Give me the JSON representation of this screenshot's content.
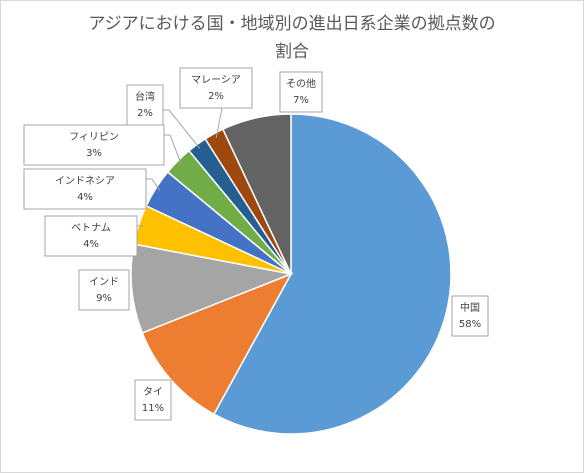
{
  "chart_data": {
    "type": "pie",
    "title_line1": "アジアにおける国・地域別の進出日系企業の拠点数の",
    "title_line2": "割合",
    "slices": [
      {
        "label": "中国",
        "value": 58,
        "pct": "58%",
        "color": "#5b9bd5"
      },
      {
        "label": "タイ",
        "value": 11,
        "pct": "11%",
        "color": "#ed7d31"
      },
      {
        "label": "インド",
        "value": 9,
        "pct": "9%",
        "color": "#a5a5a5"
      },
      {
        "label": "ベトナム",
        "value": 4,
        "pct": "4%",
        "color": "#ffc000"
      },
      {
        "label": "インドネシア",
        "value": 4,
        "pct": "4%",
        "color": "#4472c4"
      },
      {
        "label": "フィリピン",
        "value": 3,
        "pct": "3%",
        "color": "#70ad47"
      },
      {
        "label": "台湾",
        "value": 2,
        "pct": "2%",
        "color": "#255e91"
      },
      {
        "label": "マレーシア",
        "value": 2,
        "pct": "2%",
        "color": "#9e480e"
      },
      {
        "label": "その他",
        "value": 7,
        "pct": "7%",
        "color": "#636363"
      }
    ]
  }
}
